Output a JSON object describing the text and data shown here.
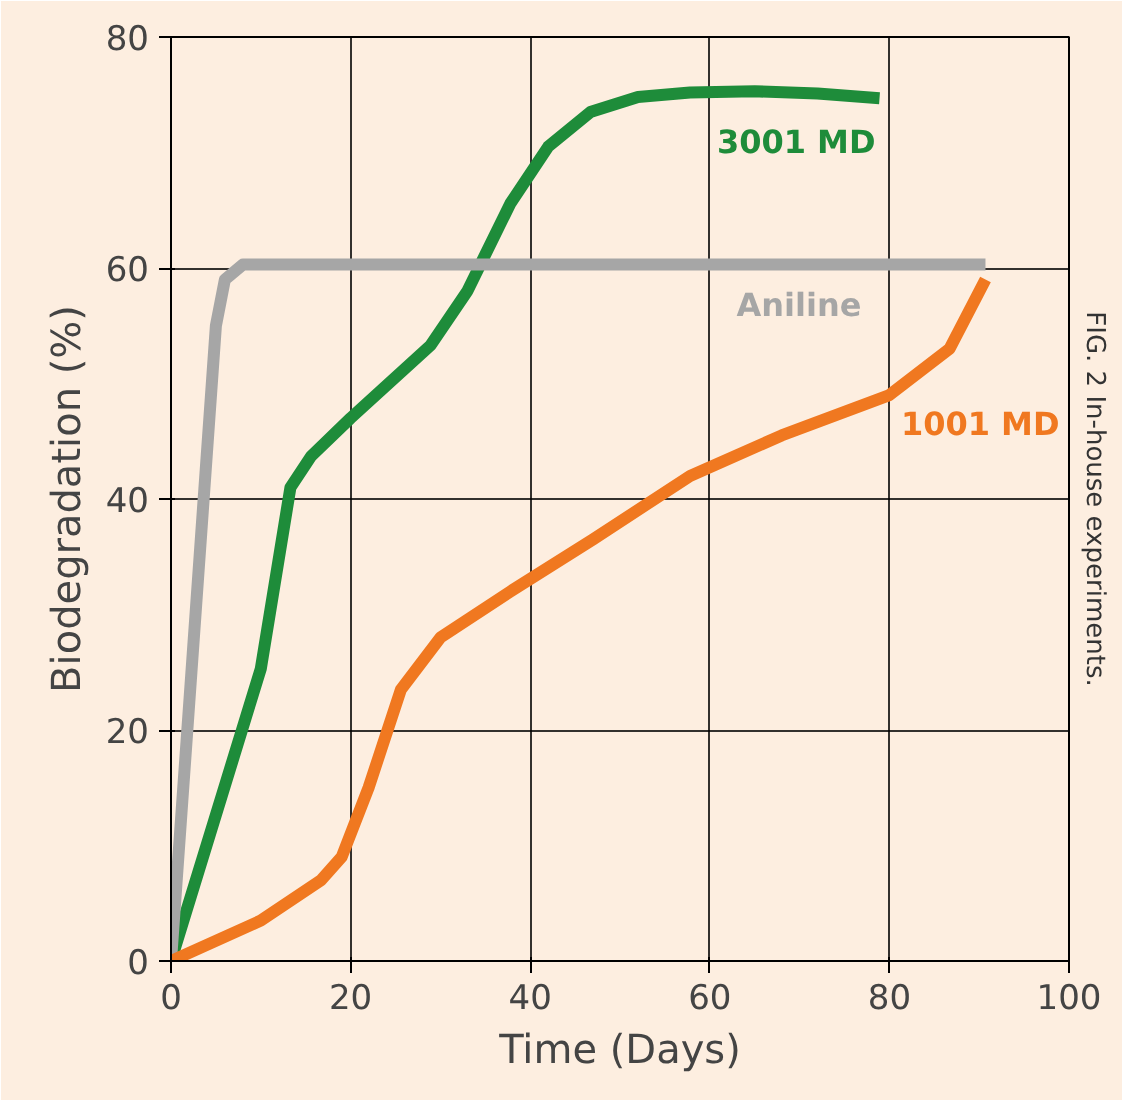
{
  "chart_data": {
    "type": "line",
    "xlabel": "Time (Days)",
    "ylabel": "Biodegradation (%)",
    "xlim": [
      0,
      100
    ],
    "ylim": [
      0,
      80
    ],
    "xticks": [
      0,
      20,
      40,
      60,
      80,
      100
    ],
    "yticks": [
      0,
      20,
      40,
      60,
      80
    ],
    "grid": true,
    "legend": false,
    "marker": "none",
    "line_style": "solid",
    "annotations": [
      "FIG. 2 In-house experiments."
    ],
    "series": [
      {
        "name": "3001 MD",
        "color": "#1e8c3a",
        "x": [
          0,
          10,
          13.3,
          15.6,
          20,
          28.9,
          33,
          37.8,
          42,
          46.7,
          52,
          57.8,
          65,
          72,
          78.9
        ],
        "values": [
          0,
          25.3,
          41,
          43.7,
          47,
          53.3,
          58,
          65.6,
          70.5,
          73.5,
          74.8,
          75.2,
          75.3,
          75.1,
          74.7
        ]
      },
      {
        "name": "Aniline",
        "color": "#a6a6a6",
        "x": [
          0,
          5,
          6,
          8,
          90.7
        ],
        "values": [
          0,
          55,
          59,
          60.3,
          60.3
        ]
      },
      {
        "name": "1001 MD",
        "color": "#f07820",
        "x": [
          0,
          10,
          16.7,
          19,
          22,
          25.6,
          30,
          37.8,
          47,
          57.8,
          68,
          80,
          86.7,
          90.7
        ],
        "values": [
          0,
          3.5,
          7,
          9,
          15,
          23.5,
          28,
          32,
          36.5,
          42,
          45.5,
          49,
          53,
          59
        ]
      }
    ]
  }
}
